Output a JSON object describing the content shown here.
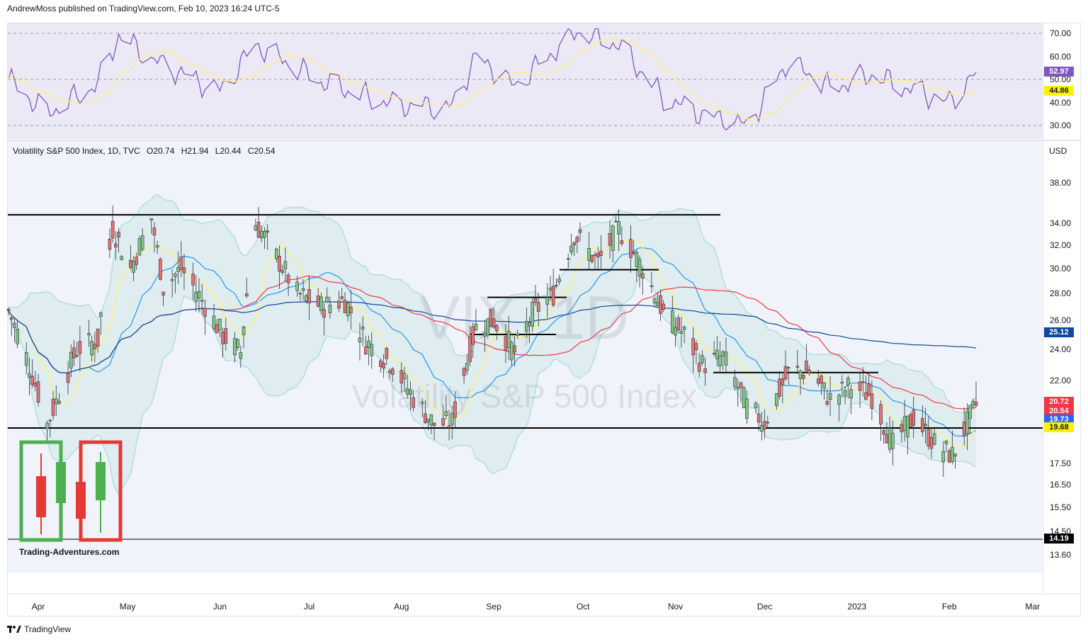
{
  "header": {
    "published": "AndrewMoss published on TradingView.com, Feb 10, 2023 16:24 UTC-5"
  },
  "legend": {
    "text": "Volatility S&P 500 Index, 1D, TVC",
    "open": "O20.74",
    "high": "H21.94",
    "low": "L20.44",
    "close": "C20.54"
  },
  "watermark": {
    "symbol": "VIX, 1D",
    "description": "Volatility S&P 500 Index"
  },
  "price_axis": {
    "currency": "USD",
    "ticks": [
      "38.00",
      "34.00",
      "32.00",
      "30.00",
      "28.00",
      "26.00",
      "24.00",
      "22.00",
      "17.50",
      "16.50",
      "15.50",
      "14.50",
      "13.60"
    ]
  },
  "rsi_axis": {
    "ticks": [
      "70.00",
      "60.00",
      "50.00",
      "40.00",
      "30.00"
    ]
  },
  "price_tags": [
    {
      "value": "25.12",
      "bg": "#0d47a1",
      "fg": "#ffffff"
    },
    {
      "value": "20.72",
      "bg": "#f23645",
      "fg": "#ffffff"
    },
    {
      "value": "20.54",
      "bg": "#f23645",
      "fg": "#ffffff"
    },
    {
      "value": "19.73",
      "bg": "#2962ff",
      "fg": "#ffffff"
    },
    {
      "value": "19.68",
      "bg": "#fff200",
      "fg": "#131722"
    },
    {
      "value": "14.19",
      "bg": "#000000",
      "fg": "#ffffff"
    }
  ],
  "rsi_tags": [
    {
      "value": "52.97",
      "bg": "#7e57c2",
      "fg": "#ffffff"
    },
    {
      "value": "44.86",
      "bg": "#fff200",
      "fg": "#131722"
    }
  ],
  "time_axis": [
    "Apr",
    "May",
    "Jun",
    "Jul",
    "Aug",
    "Sep",
    "Oct",
    "Nov",
    "Dec",
    "2023",
    "Feb",
    "Mar"
  ],
  "logo": {
    "text": "Trading-Adventures.com"
  },
  "footer": {
    "brand": "TradingView"
  },
  "colors": {
    "up": "#81c784",
    "down": "#e57373",
    "rsi": "#7e57c2",
    "rsi_ma": "#fff176",
    "sma20": "#2196f3",
    "sma50": "#f23645",
    "sma200": "#0d47a1",
    "bands": "#b2dfdb"
  },
  "chart_data": {
    "type": "candlestick",
    "symbol": "VIX",
    "interval": "1D",
    "x_range": [
      "2022-03-22",
      "2023-02-10"
    ],
    "y_scale": "log",
    "ylim": [
      13.3,
      41.5
    ],
    "last_candle": {
      "date": "2023-02-10",
      "open": 20.74,
      "high": 21.94,
      "low": 20.44,
      "close": 20.54
    },
    "horizontal_levels": [
      34.8,
      22.5,
      19.3,
      14.19,
      29.9,
      27.7,
      25.0
    ],
    "indicator_values": {
      "sma50": 20.72,
      "sma20": 19.73,
      "ema": 19.68,
      "sma200": 25.12
    },
    "close_path": [
      {
        "date": "2022-03-22",
        "close": 26.7
      },
      {
        "date": "2022-03-28",
        "close": 23.5
      },
      {
        "date": "2022-04-04",
        "close": 19.5
      },
      {
        "date": "2022-04-08",
        "close": 21.2
      },
      {
        "date": "2022-04-14",
        "close": 24.0
      },
      {
        "date": "2022-04-21",
        "close": 24.6
      },
      {
        "date": "2022-04-26",
        "close": 33.5
      },
      {
        "date": "2022-05-02",
        "close": 30.0
      },
      {
        "date": "2022-05-09",
        "close": 34.5
      },
      {
        "date": "2022-05-13",
        "close": 28.5
      },
      {
        "date": "2022-05-19",
        "close": 30.0
      },
      {
        "date": "2022-05-26",
        "close": 27.5
      },
      {
        "date": "2022-06-02",
        "close": 24.9
      },
      {
        "date": "2022-06-08",
        "close": 23.8
      },
      {
        "date": "2022-06-13",
        "close": 34.0
      },
      {
        "date": "2022-06-20",
        "close": 31.0
      },
      {
        "date": "2022-06-27",
        "close": 28.0
      },
      {
        "date": "2022-07-05",
        "close": 27.0
      },
      {
        "date": "2022-07-13",
        "close": 27.5
      },
      {
        "date": "2022-07-20",
        "close": 24.5
      },
      {
        "date": "2022-07-29",
        "close": 23.0
      },
      {
        "date": "2022-08-05",
        "close": 21.0
      },
      {
        "date": "2022-08-12",
        "close": 19.5
      },
      {
        "date": "2022-08-18",
        "close": 19.6
      },
      {
        "date": "2022-08-26",
        "close": 25.5
      },
      {
        "date": "2022-09-01",
        "close": 26.0
      },
      {
        "date": "2022-09-08",
        "close": 23.8
      },
      {
        "date": "2022-09-14",
        "close": 26.5
      },
      {
        "date": "2022-09-21",
        "close": 28.0
      },
      {
        "date": "2022-09-28",
        "close": 33.0
      },
      {
        "date": "2022-10-06",
        "close": 30.5
      },
      {
        "date": "2022-10-13",
        "close": 33.5
      },
      {
        "date": "2022-10-21",
        "close": 30.0
      },
      {
        "date": "2022-10-28",
        "close": 26.5
      },
      {
        "date": "2022-11-04",
        "close": 25.0
      },
      {
        "date": "2022-11-10",
        "close": 23.0
      },
      {
        "date": "2022-11-17",
        "close": 23.5
      },
      {
        "date": "2022-11-25",
        "close": 20.5
      },
      {
        "date": "2022-12-01",
        "close": 19.6
      },
      {
        "date": "2022-12-09",
        "close": 22.5
      },
      {
        "date": "2022-12-16",
        "close": 22.6
      },
      {
        "date": "2022-12-23",
        "close": 20.9
      },
      {
        "date": "2022-12-30",
        "close": 21.7
      },
      {
        "date": "2023-01-06",
        "close": 21.1
      },
      {
        "date": "2023-01-13",
        "close": 18.4
      },
      {
        "date": "2023-01-20",
        "close": 19.9
      },
      {
        "date": "2023-01-27",
        "close": 18.5
      },
      {
        "date": "2023-02-02",
        "close": 17.9
      },
      {
        "date": "2023-02-10",
        "close": 20.54
      }
    ],
    "rsi": {
      "period_value": 52.97,
      "ma_value": 44.86,
      "ylim": [
        25,
        75
      ],
      "levels": [
        70,
        50,
        30
      ],
      "path": [
        {
          "date": "2022-03-22",
          "value": 50
        },
        {
          "date": "2022-04-04",
          "value": 35
        },
        {
          "date": "2022-04-21",
          "value": 48
        },
        {
          "date": "2022-04-28",
          "value": 69
        },
        {
          "date": "2022-05-10",
          "value": 58
        },
        {
          "date": "2022-06-01",
          "value": 45
        },
        {
          "date": "2022-06-13",
          "value": 65
        },
        {
          "date": "2022-07-05",
          "value": 49
        },
        {
          "date": "2022-07-29",
          "value": 39
        },
        {
          "date": "2022-08-18",
          "value": 38
        },
        {
          "date": "2022-08-26",
          "value": 60
        },
        {
          "date": "2022-09-08",
          "value": 47
        },
        {
          "date": "2022-09-29",
          "value": 71
        },
        {
          "date": "2022-10-13",
          "value": 65
        },
        {
          "date": "2022-10-28",
          "value": 42
        },
        {
          "date": "2022-11-10",
          "value": 35
        },
        {
          "date": "2022-11-25",
          "value": 30
        },
        {
          "date": "2022-12-09",
          "value": 58
        },
        {
          "date": "2022-12-23",
          "value": 46
        },
        {
          "date": "2023-01-06",
          "value": 52
        },
        {
          "date": "2023-01-20",
          "value": 45
        },
        {
          "date": "2023-02-01",
          "value": 40
        },
        {
          "date": "2023-02-10",
          "value": 52.97
        }
      ]
    }
  }
}
